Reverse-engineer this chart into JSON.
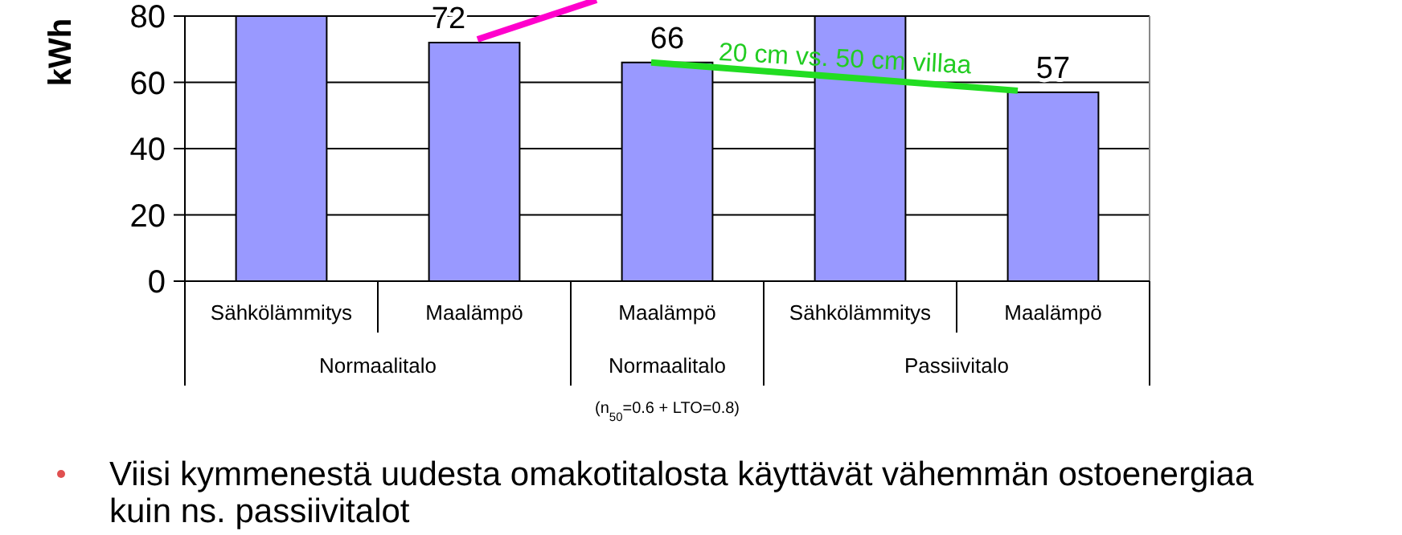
{
  "chart_data": {
    "type": "bar",
    "ylabel": "kWh",
    "categories": [
      "Sähkölämmitys",
      "Maalämpö",
      "Maalämpö",
      "Sähkölämmitys",
      "Maalämpö"
    ],
    "values": [
      80,
      72,
      66,
      80,
      57
    ],
    "value_labels": [
      null,
      "72",
      "66",
      null,
      "57"
    ],
    "color": "#9999ff",
    "ylim": [
      0,
      80
    ],
    "yticks": [
      0,
      20,
      40,
      60,
      80
    ],
    "grid": "y",
    "annotations": [
      "20 cm vs. 50 cm villaa",
      "Normaalitalo",
      "Normaalitalo",
      "Passiivitalo",
      "(n$_{50}$=0.6 + LTO=0.8)",
      "Viisi kymmenestä uudesta omakotitalosta käyttävät vähemmän ostoenergiaa",
      "kuin ns. passiivitalot"
    ]
  }
}
